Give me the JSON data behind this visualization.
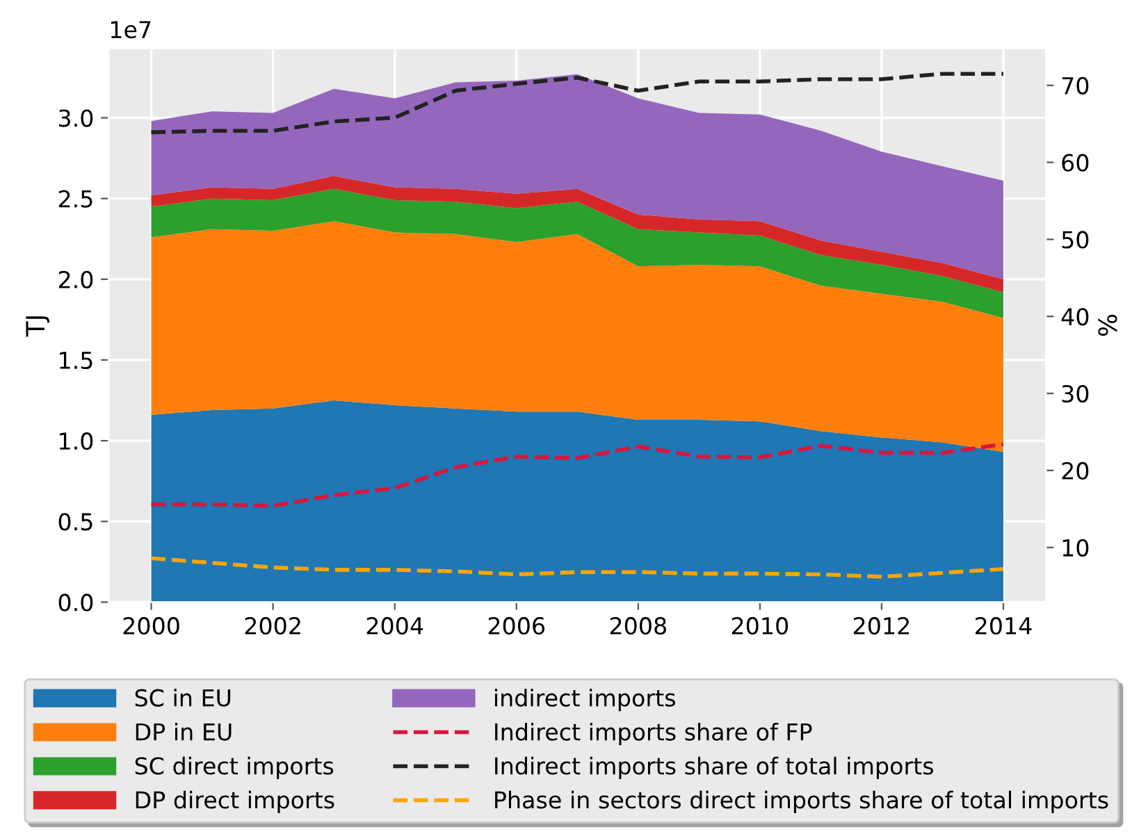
{
  "chart_data": {
    "type": "area",
    "stacked": true,
    "ylabel": "TJ",
    "y2label": "%",
    "annotations": [
      "1e7"
    ],
    "x": [
      2000,
      2001,
      2002,
      2003,
      2004,
      2005,
      2006,
      2007,
      2008,
      2009,
      2010,
      2011,
      2012,
      2013,
      2014
    ],
    "series": [
      {
        "name": "SC in EU",
        "color": "#1f77b4",
        "values": [
          1.16,
          1.19,
          1.2,
          1.25,
          1.22,
          1.2,
          1.18,
          1.18,
          1.13,
          1.13,
          1.12,
          1.06,
          1.02,
          0.99,
          0.93
        ]
      },
      {
        "name": "DP in EU",
        "color": "#ff7f0e",
        "values": [
          1.1,
          1.12,
          1.1,
          1.11,
          1.07,
          1.08,
          1.05,
          1.1,
          0.95,
          0.96,
          0.96,
          0.9,
          0.89,
          0.87,
          0.83
        ]
      },
      {
        "name": "SC direct imports",
        "color": "#2ca02c",
        "values": [
          0.19,
          0.19,
          0.19,
          0.2,
          0.2,
          0.2,
          0.21,
          0.2,
          0.23,
          0.2,
          0.19,
          0.19,
          0.18,
          0.16,
          0.16
        ]
      },
      {
        "name": "DP direct imports",
        "color": "#d62728",
        "values": [
          0.07,
          0.07,
          0.07,
          0.08,
          0.08,
          0.08,
          0.09,
          0.08,
          0.09,
          0.08,
          0.09,
          0.09,
          0.08,
          0.08,
          0.08
        ]
      },
      {
        "name": "indirect imports",
        "color": "#9467bd",
        "values": [
          0.46,
          0.47,
          0.47,
          0.54,
          0.55,
          0.66,
          0.7,
          0.71,
          0.72,
          0.66,
          0.66,
          0.68,
          0.62,
          0.6,
          0.61
        ]
      },
      {
        "name": "Indirect imports share of FP",
        "type": "line",
        "axis": "y2",
        "color": "#dc143c",
        "values": [
          15.6,
          15.6,
          15.4,
          16.8,
          17.7,
          20.4,
          21.8,
          21.6,
          23.1,
          21.8,
          21.7,
          23.2,
          22.3,
          22.3,
          23.4
        ]
      },
      {
        "name": "Indirect imports share of total imports",
        "type": "line",
        "axis": "y2",
        "color": "#222222",
        "values": [
          63.9,
          64.1,
          64.1,
          65.3,
          65.8,
          69.3,
          70.2,
          71.0,
          69.3,
          70.5,
          70.5,
          70.8,
          70.8,
          71.5,
          71.5
        ]
      },
      {
        "name": "Phase in sectors direct imports share of total imports",
        "type": "line",
        "axis": "y2",
        "color": "#ffa500",
        "values": [
          8.6,
          8.0,
          7.4,
          7.1,
          7.1,
          6.9,
          6.5,
          6.8,
          6.8,
          6.6,
          6.6,
          6.5,
          6.2,
          6.7,
          7.2
        ]
      }
    ],
    "line_style": "dashed",
    "xlim": [
      1999.3,
      2014.7
    ],
    "xticks": [
      2000,
      2002,
      2004,
      2006,
      2008,
      2010,
      2012,
      2014
    ],
    "ylim": [
      0,
      3.43
    ],
    "yticks": [
      {
        "value": 0,
        "label": "0.0"
      },
      0.5,
      {
        "value": 1,
        "label": "1.0"
      },
      1.5,
      {
        "value": 2,
        "label": "2.0"
      },
      2.5,
      {
        "value": 3,
        "label": "3.0"
      }
    ],
    "y2lim": [
      2.9,
      74.8
    ],
    "y2ticks": [
      10,
      20,
      30,
      40,
      50,
      60,
      70
    ],
    "grid": true,
    "legend": "bottom"
  }
}
